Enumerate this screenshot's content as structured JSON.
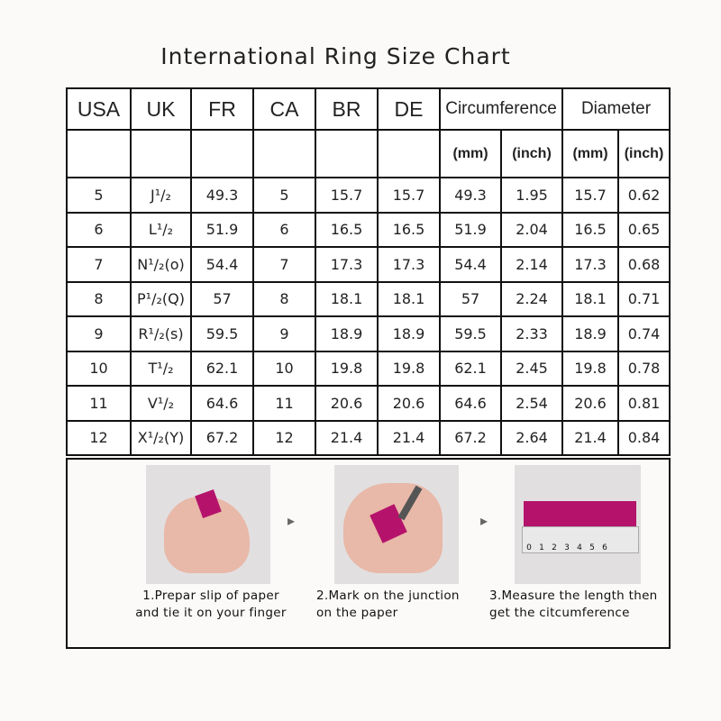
{
  "title": "International Ring Size Chart",
  "headers": [
    "USA",
    "UK",
    "FR",
    "CA",
    "BR",
    "DE",
    "Circumference",
    "Diameter"
  ],
  "subheaders": [
    "(mm)",
    "(inch)",
    "(mm)",
    "(inch)"
  ],
  "rows": [
    [
      "5",
      "J¹/₂",
      "49.3",
      "5",
      "15.7",
      "15.7",
      "49.3",
      "1.95",
      "15.7",
      "0.62"
    ],
    [
      "6",
      "L¹/₂",
      "51.9",
      "6",
      "16.5",
      "16.5",
      "51.9",
      "2.04",
      "16.5",
      "0.65"
    ],
    [
      "7",
      "N¹/₂(o)",
      "54.4",
      "7",
      "17.3",
      "17.3",
      "54.4",
      "2.14",
      "17.3",
      "0.68"
    ],
    [
      "8",
      "P¹/₂(Q)",
      "57",
      "8",
      "18.1",
      "18.1",
      "57",
      "2.24",
      "18.1",
      "0.71"
    ],
    [
      "9",
      "R¹/₂(s)",
      "59.5",
      "9",
      "18.9",
      "18.9",
      "59.5",
      "2.33",
      "18.9",
      "0.74"
    ],
    [
      "10",
      "T¹/₂",
      "62.1",
      "10",
      "19.8",
      "19.8",
      "62.1",
      "2.45",
      "19.8",
      "0.78"
    ],
    [
      "11",
      "V¹/₂",
      "64.6",
      "11",
      "20.6",
      "20.6",
      "64.6",
      "2.54",
      "20.6",
      "0.81"
    ],
    [
      "12",
      "X¹/₂(Y)",
      "67.2",
      "12",
      "21.4",
      "21.4",
      "67.2",
      "2.64",
      "21.4",
      "0.84"
    ]
  ],
  "steps": [
    {
      "line1": "1.Prepar slip of paper",
      "line2": "and tie it on your finger"
    },
    {
      "line1": "2.Mark on the junction",
      "line2": "on the paper"
    },
    {
      "line1": "3.Measure the length then",
      "line2": "get the citcumference"
    }
  ],
  "ruler_digits": [
    "0",
    "1",
    "2",
    "3",
    "4",
    "5",
    "6"
  ],
  "colors": {
    "paper_strip": "#b5136b",
    "skin": "#e8b8a8"
  }
}
